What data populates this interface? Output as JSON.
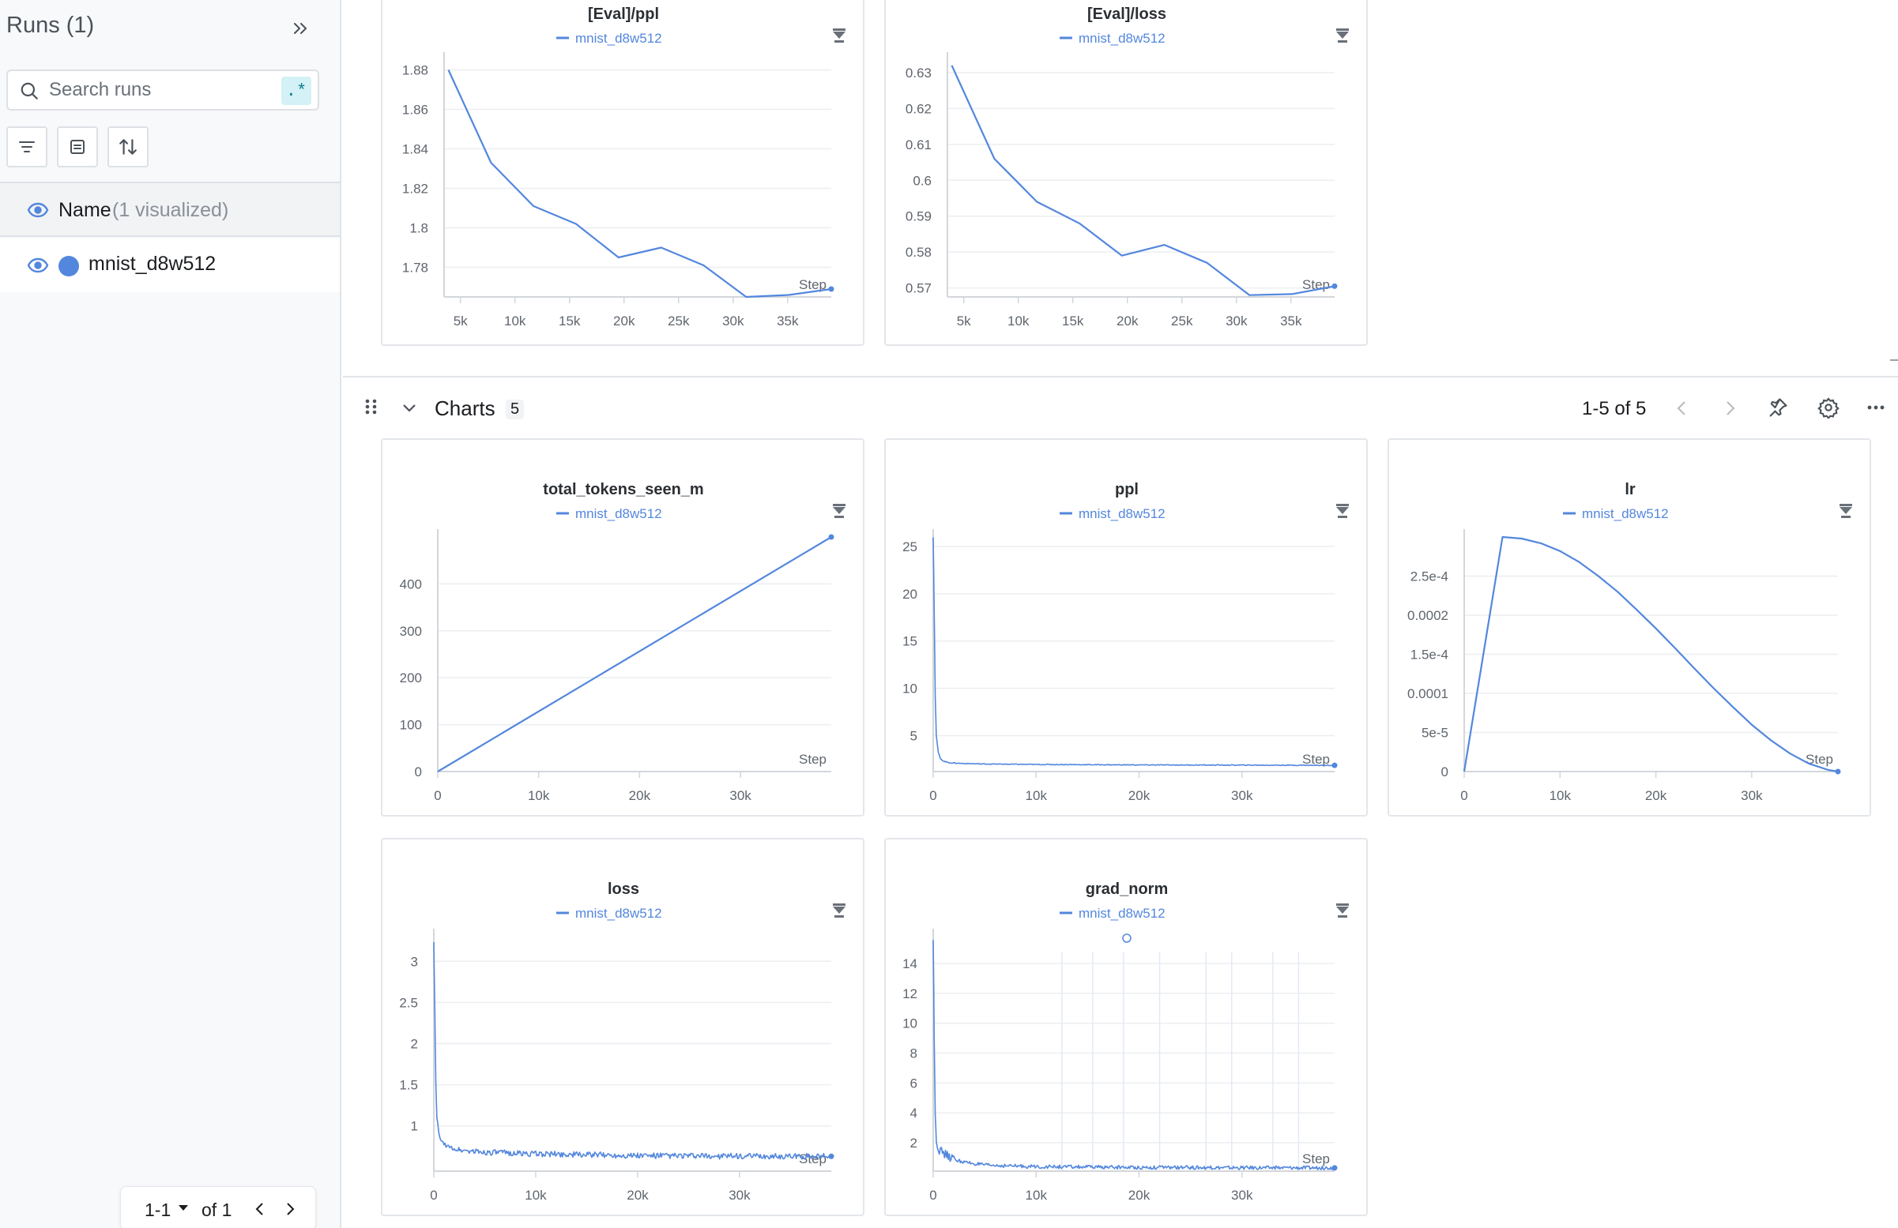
{
  "sidebar": {
    "title": "Runs (1)",
    "search_placeholder": "Search runs",
    "regex_label": ".*",
    "name_header": "Name",
    "name_count": "(1 visualized)",
    "runs": [
      {
        "name": "mnist_d8w512",
        "color": "#5387dd"
      }
    ],
    "pager": {
      "range": "1-1",
      "of_label": "of 1"
    }
  },
  "section": {
    "title": "Charts",
    "count": "5",
    "pages": "1-5 of 5"
  },
  "legend_label": "mnist_d8w512",
  "series_color": "#5387dd",
  "chart_data": [
    {
      "id": "eval-ppl",
      "type": "line",
      "title": "[Eval]/ppl",
      "xlabel": "Step",
      "xlim": [
        3500,
        39000
      ],
      "ylim": [
        1.765,
        1.885
      ],
      "xticks": [
        5000,
        10000,
        15000,
        20000,
        25000,
        30000,
        35000
      ],
      "xtick_labels": [
        "5k",
        "10k",
        "15k",
        "20k",
        "25k",
        "30k",
        "35k"
      ],
      "yticks": [
        1.78,
        1.8,
        1.82,
        1.84,
        1.86,
        1.88
      ],
      "ytick_labels": [
        "1.78",
        "1.8",
        "1.82",
        "1.84",
        "1.86",
        "1.88"
      ],
      "series": [
        {
          "name": "mnist_d8w512",
          "x": [
            3900,
            7800,
            11700,
            15600,
            19500,
            23400,
            27300,
            31200,
            35100,
            39000
          ],
          "y": [
            1.88,
            1.833,
            1.811,
            1.802,
            1.785,
            1.79,
            1.781,
            1.765,
            1.766,
            1.769
          ]
        }
      ]
    },
    {
      "id": "eval-loss",
      "type": "line",
      "title": "[Eval]/loss",
      "xlabel": "Step",
      "xlim": [
        3500,
        39000
      ],
      "ylim": [
        0.5675,
        0.6335
      ],
      "xticks": [
        5000,
        10000,
        15000,
        20000,
        25000,
        30000,
        35000
      ],
      "xtick_labels": [
        "5k",
        "10k",
        "15k",
        "20k",
        "25k",
        "30k",
        "35k"
      ],
      "yticks": [
        0.57,
        0.58,
        0.59,
        0.6,
        0.61,
        0.62,
        0.63
      ],
      "ytick_labels": [
        "0.57",
        "0.58",
        "0.59",
        "0.6",
        "0.61",
        "0.62",
        "0.63"
      ],
      "series": [
        {
          "name": "mnist_d8w512",
          "x": [
            3900,
            7800,
            11700,
            15600,
            19500,
            23400,
            27300,
            31200,
            35100,
            39000
          ],
          "y": [
            0.632,
            0.606,
            0.594,
            0.588,
            0.579,
            0.582,
            0.577,
            0.568,
            0.5683,
            0.5705
          ]
        }
      ]
    },
    {
      "id": "total-tokens",
      "type": "line",
      "title": "total_tokens_seen_m",
      "xlabel": "Step",
      "xlim": [
        0,
        39000
      ],
      "ylim": [
        0,
        500
      ],
      "xticks": [
        0,
        10000,
        20000,
        30000
      ],
      "xtick_labels": [
        "0",
        "10k",
        "20k",
        "30k"
      ],
      "yticks": [
        0,
        100,
        200,
        300,
        400
      ],
      "ytick_labels": [
        "0",
        "100",
        "200",
        "300",
        "400"
      ],
      "series": [
        {
          "name": "mnist_d8w512",
          "x": [
            0,
            39000
          ],
          "y": [
            0,
            500
          ]
        }
      ]
    },
    {
      "id": "ppl",
      "type": "line",
      "title": "ppl",
      "xlabel": "Step",
      "xlim": [
        0,
        39000
      ],
      "ylim": [
        1.2,
        26
      ],
      "xticks": [
        0,
        10000,
        20000,
        30000
      ],
      "xtick_labels": [
        "0",
        "10k",
        "20k",
        "30k"
      ],
      "yticks": [
        5,
        10,
        15,
        20,
        25
      ],
      "ytick_labels": [
        "5",
        "10",
        "15",
        "20",
        "25"
      ],
      "series": [
        {
          "name": "mnist_d8w512",
          "x": [
            0,
            100,
            200,
            300,
            500,
            700,
            1000,
            1500,
            2000,
            3000,
            5000,
            10000,
            20000,
            30000,
            39000
          ],
          "y": [
            26,
            18,
            9,
            5,
            3.2,
            2.6,
            2.3,
            2.15,
            2.1,
            2.05,
            2.0,
            1.95,
            1.9,
            1.88,
            1.86
          ]
        }
      ]
    },
    {
      "id": "lr",
      "type": "line",
      "title": "lr",
      "xlabel": "Step",
      "xlim": [
        0,
        39000
      ],
      "ylim": [
        0,
        0.0003
      ],
      "xticks": [
        0,
        10000,
        20000,
        30000
      ],
      "xtick_labels": [
        "0",
        "10k",
        "20k",
        "30k"
      ],
      "yticks": [
        0,
        5e-05,
        0.0001,
        0.00015,
        0.0002,
        0.00025
      ],
      "ytick_labels": [
        "0",
        "5e-5",
        "0.0001",
        "1.5e-4",
        "0.0002",
        "2.5e-4"
      ],
      "series": [
        {
          "name": "mnist_d8w512",
          "x": [
            0,
            4000,
            6000,
            8000,
            10000,
            12000,
            14000,
            16000,
            18000,
            20000,
            22000,
            24000,
            26000,
            28000,
            30000,
            32000,
            34000,
            36000,
            38000,
            39000
          ],
          "y": [
            0,
            0.0003,
            0.000298,
            0.000292,
            0.000282,
            0.000268,
            0.00025,
            0.00023,
            0.000207,
            0.000183,
            0.000158,
            0.000132,
            0.000107,
            8.3e-05,
            6e-05,
            4e-05,
            2.3e-05,
            1e-05,
            2e-06,
            0
          ]
        }
      ]
    },
    {
      "id": "loss",
      "type": "line",
      "title": "loss",
      "xlabel": "Step",
      "xlim": [
        0,
        39000
      ],
      "ylim": [
        0.45,
        3.3
      ],
      "xticks": [
        0,
        10000,
        20000,
        30000
      ],
      "xtick_labels": [
        "0",
        "10k",
        "20k",
        "30k"
      ],
      "yticks": [
        1,
        1.5,
        2,
        2.5,
        3
      ],
      "ytick_labels": [
        "1",
        "1.5",
        "2",
        "2.5",
        "3"
      ],
      "series": [
        {
          "name": "mnist_d8w512",
          "x": [
            0,
            100,
            200,
            300,
            500,
            800,
            1200,
            2000,
            3000,
            5000,
            10000,
            20000,
            30000,
            39000
          ],
          "y": [
            3.25,
            2.4,
            1.5,
            1.1,
            0.9,
            0.8,
            0.76,
            0.72,
            0.7,
            0.68,
            0.66,
            0.64,
            0.63,
            0.63
          ]
        }
      ]
    },
    {
      "id": "grad-norm",
      "type": "line",
      "title": "grad_norm",
      "xlabel": "Step",
      "xlim": [
        0,
        39000
      ],
      "ylim": [
        0.1,
        15.8
      ],
      "xticks": [
        0,
        10000,
        20000,
        30000
      ],
      "xtick_labels": [
        "0",
        "10k",
        "20k",
        "30k"
      ],
      "yticks": [
        2,
        4,
        6,
        8,
        10,
        12,
        14
      ],
      "ytick_labels": [
        "2",
        "4",
        "6",
        "8",
        "10",
        "12",
        "14"
      ],
      "series": [
        {
          "name": "mnist_d8w512",
          "x": [
            0,
            100,
            200,
            300,
            500,
            800,
            1200,
            2000,
            3000,
            5000,
            10000,
            20000,
            30000,
            39000
          ],
          "y": [
            15.5,
            9,
            4,
            2.2,
            1.6,
            1.4,
            1.2,
            0.9,
            0.7,
            0.5,
            0.4,
            0.35,
            0.33,
            0.32
          ]
        }
      ]
    }
  ]
}
